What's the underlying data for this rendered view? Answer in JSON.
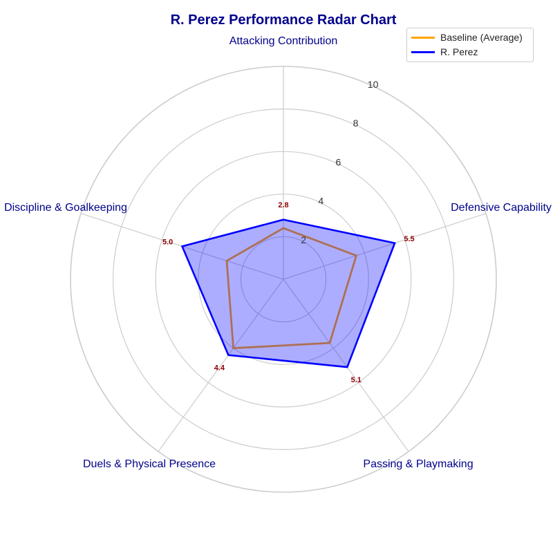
{
  "chart_data": {
    "type": "radar",
    "title": "R. Perez Performance Radar Chart",
    "categories": [
      "Attacking Contribution",
      "Defensive Capability",
      "Passing & Playmaking",
      "Duels & Physical Presence",
      "Discipline & Goalkeeping"
    ],
    "radial_ticks": [
      2,
      4,
      6,
      8,
      10
    ],
    "rlim": [
      0,
      10
    ],
    "grid": true,
    "legend_position": "top-right",
    "series": [
      {
        "name": "Baseline (Average)",
        "values": [
          2.4,
          3.6,
          3.7,
          4.0,
          2.8
        ],
        "color": "#ffa500",
        "fill": false
      },
      {
        "name": "R. Perez",
        "values": [
          2.8,
          5.5,
          5.1,
          4.4,
          5.0
        ],
        "color": "#0000ff",
        "fill": true,
        "fill_color": "#0000ff",
        "show_value_labels": true
      }
    ],
    "value_label_color": "#8b0000",
    "axis_label_color": "#00008b",
    "grid_color": "#cccccc"
  }
}
